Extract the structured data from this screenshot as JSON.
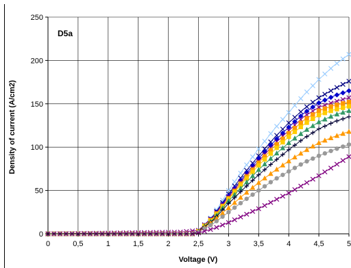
{
  "chart_data": {
    "type": "line",
    "title": "",
    "annotation": "D5a",
    "xlabel": "Voltage (V)",
    "ylabel": "Density of current (A/cm2)",
    "xlim": [
      0,
      5
    ],
    "ylim": [
      0,
      250
    ],
    "x_tick_labels": [
      "0",
      "0,5",
      "1",
      "1,5",
      "2",
      "2,5",
      "3",
      "3,5",
      "4",
      "4,5",
      "5"
    ],
    "y_tick_labels": [
      "0",
      "50",
      "100",
      "150",
      "200",
      "250"
    ],
    "grid": true,
    "legend": "none",
    "series": [
      {
        "color": "#99ccff",
        "marker": "x",
        "points": [
          [
            0,
            0
          ],
          [
            2.4,
            0
          ],
          [
            2.5,
            3
          ],
          [
            2.75,
            22
          ],
          [
            3,
            50
          ],
          [
            3.25,
            75
          ],
          [
            3.5,
            98
          ],
          [
            3.75,
            120
          ],
          [
            4,
            140
          ],
          [
            4.25,
            160
          ],
          [
            4.5,
            178
          ],
          [
            4.75,
            194
          ],
          [
            5,
            207
          ]
        ]
      },
      {
        "color": "#000080",
        "marker": "x",
        "points": [
          [
            0,
            0
          ],
          [
            2.4,
            0
          ],
          [
            2.5,
            3
          ],
          [
            2.75,
            21
          ],
          [
            3,
            46
          ],
          [
            3.25,
            69
          ],
          [
            3.5,
            90
          ],
          [
            3.75,
            110
          ],
          [
            4,
            128
          ],
          [
            4.25,
            144
          ],
          [
            4.5,
            157
          ],
          [
            4.75,
            167
          ],
          [
            5,
            176
          ]
        ]
      },
      {
        "color": "#0000cc",
        "marker": "diamond",
        "points": [
          [
            0,
            0
          ],
          [
            2.4,
            0
          ],
          [
            2.5,
            3
          ],
          [
            2.75,
            20
          ],
          [
            3,
            44
          ],
          [
            3.25,
            66
          ],
          [
            3.5,
            87
          ],
          [
            3.75,
            106
          ],
          [
            4,
            123
          ],
          [
            4.25,
            139
          ],
          [
            4.5,
            151
          ],
          [
            4.75,
            159
          ],
          [
            5,
            165
          ]
        ]
      },
      {
        "color": "#800080",
        "marker": "x",
        "points": [
          [
            0,
            0
          ],
          [
            1.1,
            1
          ],
          [
            2.2,
            2
          ],
          [
            2.5,
            4
          ],
          [
            2.75,
            20
          ],
          [
            3,
            43
          ],
          [
            3.25,
            64
          ],
          [
            3.5,
            84
          ],
          [
            3.75,
            103
          ],
          [
            4,
            119
          ],
          [
            4.25,
            135
          ],
          [
            4.5,
            146
          ],
          [
            4.75,
            152
          ],
          [
            5,
            157
          ]
        ]
      },
      {
        "color": "#ff9900",
        "marker": "square",
        "points": [
          [
            0,
            0
          ],
          [
            2.4,
            0
          ],
          [
            2.5,
            3
          ],
          [
            2.75,
            19
          ],
          [
            3,
            41
          ],
          [
            3.25,
            62
          ],
          [
            3.5,
            82
          ],
          [
            3.75,
            100
          ],
          [
            4,
            116
          ],
          [
            4.25,
            131
          ],
          [
            4.5,
            142
          ],
          [
            4.75,
            148
          ],
          [
            5,
            152
          ]
        ]
      },
      {
        "color": "#ffcc00",
        "marker": "square",
        "points": [
          [
            0,
            0
          ],
          [
            2.4,
            0
          ],
          [
            2.5,
            3
          ],
          [
            2.75,
            18
          ],
          [
            3,
            40
          ],
          [
            3.25,
            60
          ],
          [
            3.5,
            79
          ],
          [
            3.75,
            96
          ],
          [
            4,
            112
          ],
          [
            4.25,
            126
          ],
          [
            4.5,
            137
          ],
          [
            4.75,
            143
          ],
          [
            5,
            147
          ]
        ]
      },
      {
        "color": "#339966",
        "marker": "triangle",
        "points": [
          [
            0,
            0
          ],
          [
            2.4,
            0
          ],
          [
            2.5,
            3
          ],
          [
            2.75,
            17
          ],
          [
            3,
            38
          ],
          [
            3.25,
            56
          ],
          [
            3.5,
            74
          ],
          [
            3.75,
            90
          ],
          [
            4,
            105
          ],
          [
            4.25,
            118
          ],
          [
            4.5,
            129
          ],
          [
            4.75,
            137
          ],
          [
            5,
            142
          ]
        ]
      },
      {
        "color": "#000033",
        "marker": "plus",
        "points": [
          [
            0,
            0
          ],
          [
            2.4,
            0
          ],
          [
            2.5,
            3
          ],
          [
            2.75,
            16
          ],
          [
            3,
            35
          ],
          [
            3.25,
            52
          ],
          [
            3.5,
            68
          ],
          [
            3.75,
            83
          ],
          [
            4,
            97
          ],
          [
            4.25,
            110
          ],
          [
            4.5,
            121
          ],
          [
            4.75,
            129
          ],
          [
            5,
            135
          ]
        ]
      },
      {
        "color": "#ff9900",
        "marker": "triangle",
        "points": [
          [
            0,
            0
          ],
          [
            2.4,
            0
          ],
          [
            2.5,
            2
          ],
          [
            2.75,
            15
          ],
          [
            3,
            30
          ],
          [
            3.25,
            45
          ],
          [
            3.5,
            59
          ],
          [
            3.75,
            72
          ],
          [
            4,
            84
          ],
          [
            4.25,
            95
          ],
          [
            4.5,
            105
          ],
          [
            4.75,
            112
          ],
          [
            5,
            118
          ]
        ]
      },
      {
        "color": "#999999",
        "marker": "circle",
        "points": [
          [
            0,
            0
          ],
          [
            2.4,
            0
          ],
          [
            2.5,
            2
          ],
          [
            2.75,
            12
          ],
          [
            3,
            25
          ],
          [
            3.25,
            38
          ],
          [
            3.5,
            50
          ],
          [
            3.75,
            62
          ],
          [
            4,
            72
          ],
          [
            4.25,
            82
          ],
          [
            4.5,
            90
          ],
          [
            4.75,
            97
          ],
          [
            5,
            103
          ]
        ]
      },
      {
        "color": "#800080",
        "marker": "x",
        "points": [
          [
            0,
            0
          ],
          [
            2.4,
            0
          ],
          [
            2.5,
            1
          ],
          [
            2.75,
            6
          ],
          [
            3,
            13
          ],
          [
            3.25,
            21
          ],
          [
            3.5,
            29
          ],
          [
            3.75,
            38
          ],
          [
            4,
            47
          ],
          [
            4.25,
            57
          ],
          [
            4.5,
            67
          ],
          [
            4.75,
            78
          ],
          [
            5,
            89
          ]
        ]
      }
    ]
  }
}
